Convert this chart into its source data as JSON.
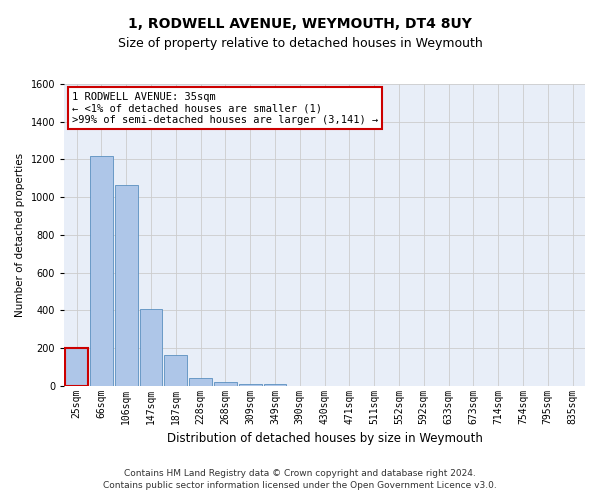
{
  "title": "1, RODWELL AVENUE, WEYMOUTH, DT4 8UY",
  "subtitle": "Size of property relative to detached houses in Weymouth",
  "xlabel": "Distribution of detached houses by size in Weymouth",
  "ylabel": "Number of detached properties",
  "categories": [
    "25sqm",
    "66sqm",
    "106sqm",
    "147sqm",
    "187sqm",
    "228sqm",
    "268sqm",
    "309sqm",
    "349sqm",
    "390sqm",
    "430sqm",
    "471sqm",
    "511sqm",
    "552sqm",
    "592sqm",
    "633sqm",
    "673sqm",
    "714sqm",
    "754sqm",
    "795sqm",
    "835sqm"
  ],
  "values": [
    200,
    1220,
    1065,
    405,
    160,
    40,
    20,
    10,
    10,
    0,
    0,
    0,
    0,
    0,
    0,
    0,
    0,
    0,
    0,
    0,
    0
  ],
  "bar_color": "#aec6e8",
  "bar_edge_color": "#5a8fc0",
  "highlight_bar_index": 0,
  "highlight_bar_edge_color": "#cc0000",
  "ylim": [
    0,
    1600
  ],
  "yticks": [
    0,
    200,
    400,
    600,
    800,
    1000,
    1200,
    1400,
    1600
  ],
  "annotation_text": "1 RODWELL AVENUE: 35sqm\n← <1% of detached houses are smaller (1)\n>99% of semi-detached houses are larger (3,141) →",
  "annotation_box_color": "#ffffff",
  "annotation_box_edge_color": "#cc0000",
  "footer_line1": "Contains HM Land Registry data © Crown copyright and database right 2024.",
  "footer_line2": "Contains public sector information licensed under the Open Government Licence v3.0.",
  "grid_color": "#cccccc",
  "background_color": "#e8eef8",
  "title_fontsize": 10,
  "subtitle_fontsize": 9,
  "xlabel_fontsize": 8.5,
  "ylabel_fontsize": 7.5,
  "tick_fontsize": 7,
  "footer_fontsize": 6.5,
  "annotation_fontsize": 7.5
}
